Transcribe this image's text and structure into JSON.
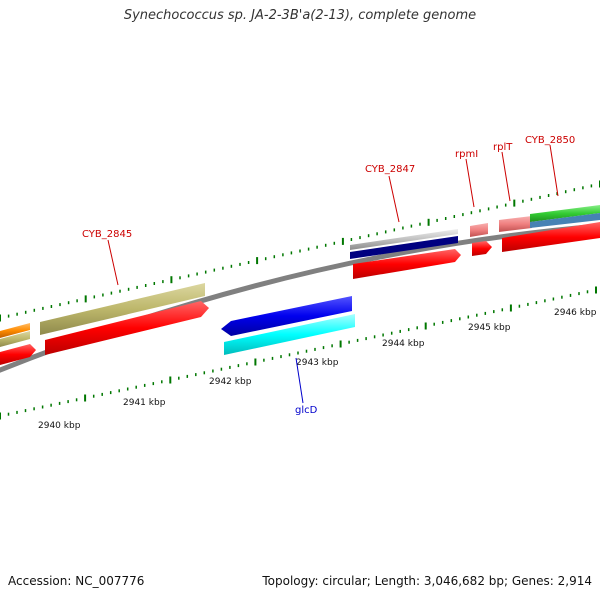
{
  "title": "Synechococcus sp. JA-2-3B'a(2-13), complete genome",
  "footer": {
    "accession": "Accession: NC_007776",
    "summary": "Topology: circular; Length: 3,046,682 bp; Genes: 2,914"
  },
  "ruler": {
    "labels": [
      "2940 kbp",
      "2941 kbp",
      "2942 kbp",
      "2943 kbp",
      "2944 kbp",
      "2945 kbp",
      "2946 kbp"
    ]
  },
  "gene_labels": {
    "cyb_2845": "CYB_2845",
    "cyb_2847": "CYB_2847",
    "rpmI": "rpmI",
    "rplT": "rplT",
    "cyb_2850": "CYB_2850",
    "glcD": "glcD"
  },
  "colors": {
    "label_red": "#cc0000",
    "label_blue": "#0000cc",
    "cds_red": "#ff0000",
    "olive": "#bdb76b",
    "orange": "#ff8c00",
    "blue": "#0000ee",
    "cyan": "#00ffff",
    "navy": "#000080",
    "gray": "#c0c0c0",
    "pink": "#f08080",
    "green": "#33cc33",
    "steelblue": "#4682b4",
    "backbone": "#808080",
    "tick": "#007700"
  }
}
